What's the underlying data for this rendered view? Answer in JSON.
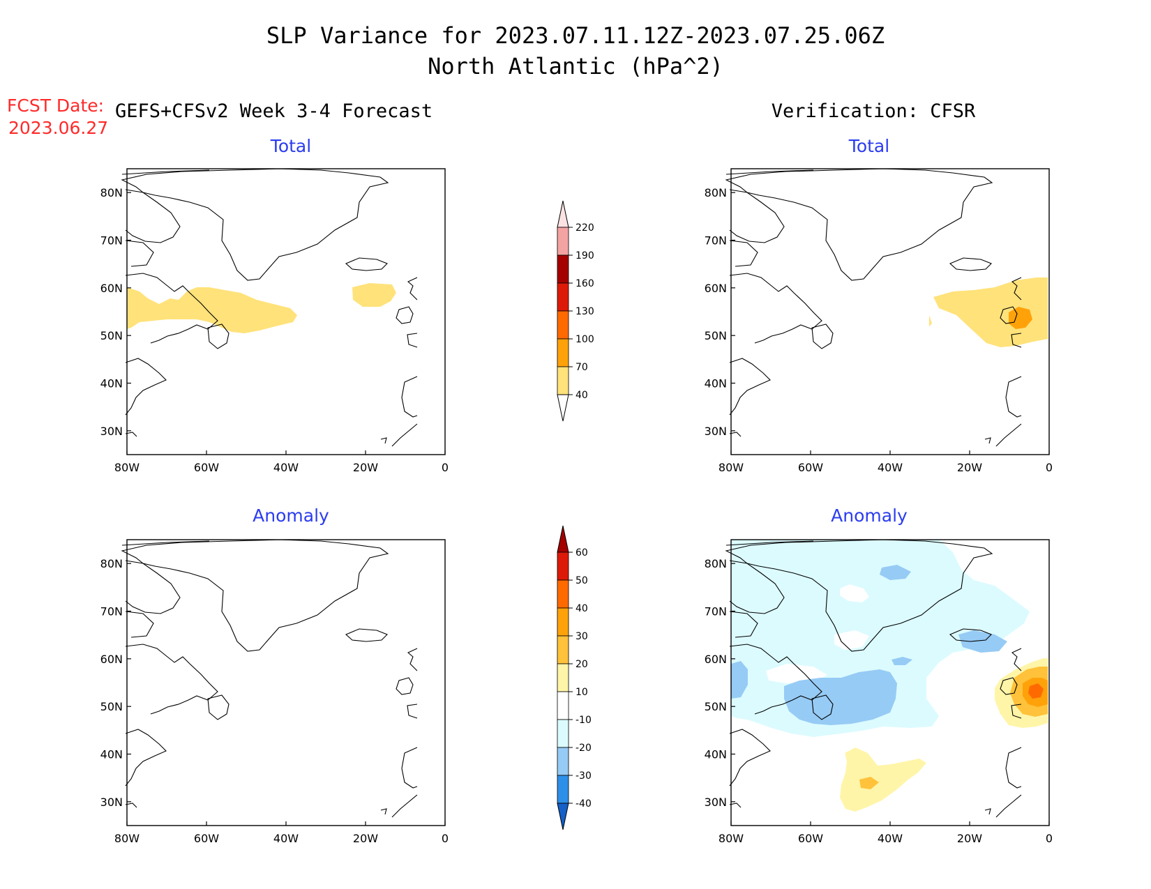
{
  "title_line1": "SLP Variance for 2023.07.11.12Z-2023.07.25.06Z",
  "title_line2": "North Atlantic (hPa^2)",
  "fcst_label": "FCST Date:",
  "fcst_date": "2023.06.27",
  "left_column_title": "GEFS+CFSv2 Week 3-4 Forecast",
  "right_column_title": "Verification: CFSR",
  "panels": [
    {
      "id": "forecast-total",
      "title": "Total"
    },
    {
      "id": "verification-total",
      "title": "Total"
    },
    {
      "id": "forecast-anomaly",
      "title": "Anomaly"
    },
    {
      "id": "verification-anomaly",
      "title": "Anomaly"
    }
  ],
  "map_axes": {
    "lon_labels": [
      "80W",
      "60W",
      "40W",
      "20W",
      "0"
    ],
    "lat_labels": [
      "80N",
      "70N",
      "60N",
      "50N",
      "40N",
      "30N"
    ],
    "lon_range": [
      -80,
      0
    ],
    "lat_range": [
      25,
      85
    ]
  },
  "colorbars": {
    "total": {
      "levels": [
        "220",
        "190",
        "160",
        "130",
        "100",
        "70",
        "40"
      ],
      "colors": [
        "#f4a3a3",
        "#a40000",
        "#dd1a0a",
        "#ff6a00",
        "#ffa20a",
        "#ffe27a"
      ],
      "top_color": "#fbe3e3"
    },
    "anomaly": {
      "levels": [
        "60",
        "50",
        "40",
        "30",
        "20",
        "10",
        "-10",
        "-20",
        "-30",
        "-40"
      ],
      "colors": [
        "#dd1a0a",
        "#ff6a00",
        "#ffa20a",
        "#ffc23a",
        "#fff5a8",
        "#ffffff",
        "#dcfbff",
        "#96cbf5",
        "#2e8fe8"
      ],
      "top_color": "#a40000",
      "bottom_color": "#1460c8"
    }
  }
}
